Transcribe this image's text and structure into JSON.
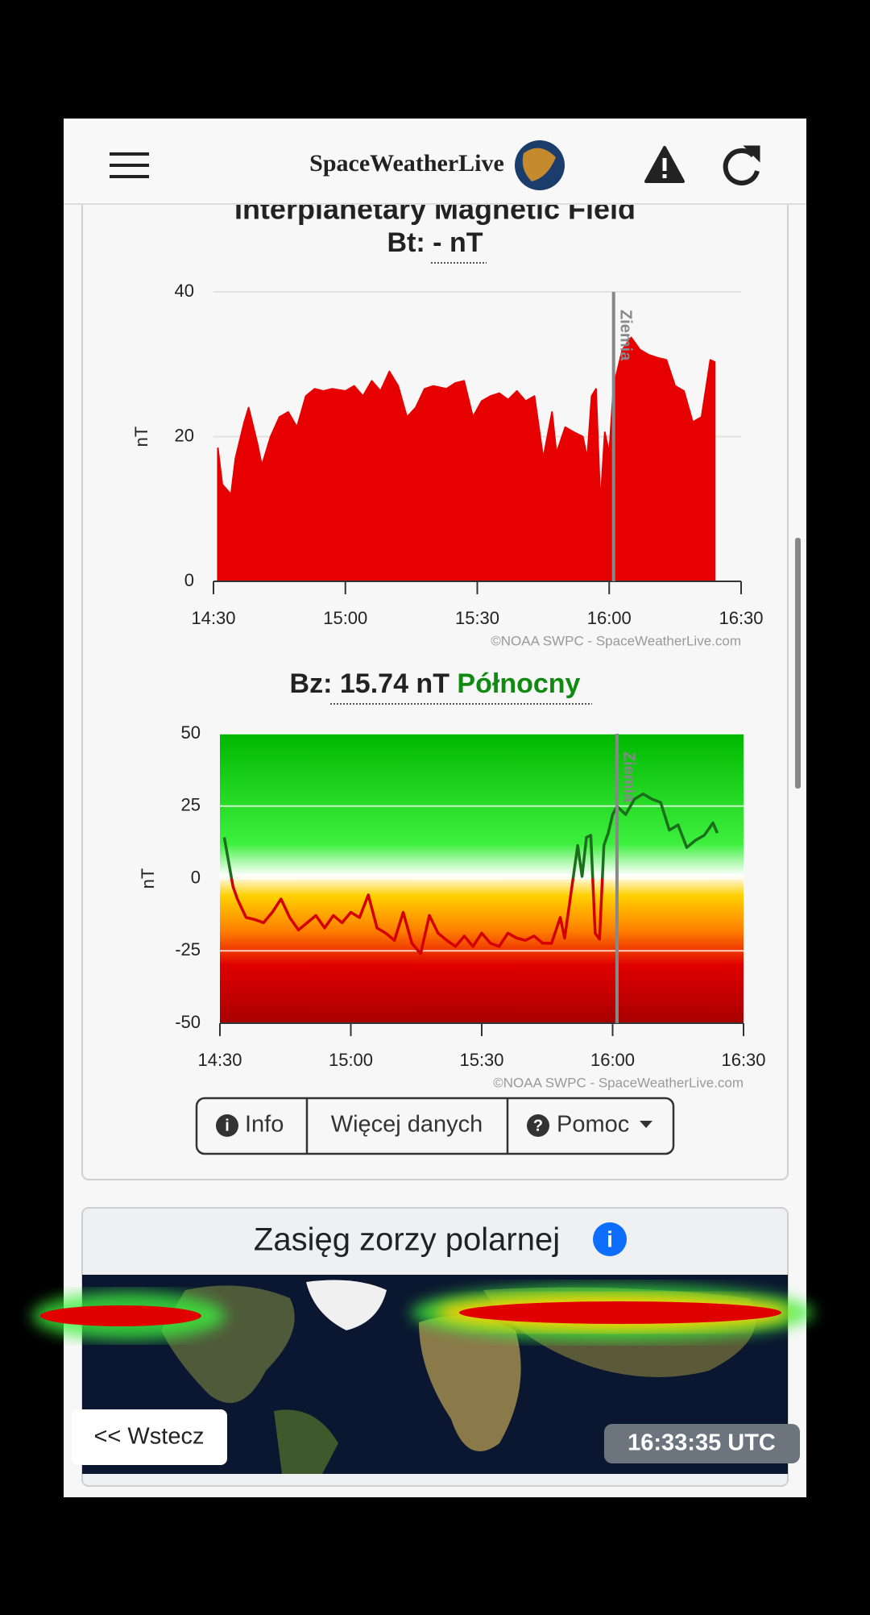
{
  "header": {
    "brand": "SpaceWeatherLive"
  },
  "chart_data": [
    {
      "type": "area",
      "title": "Interplanetary Magnetic Field",
      "subtitle_label": "Bt:",
      "subtitle_value": "- nT",
      "y_label": "nT",
      "x": [
        "14:31",
        "14:32",
        "14:33",
        "14:34",
        "14:35",
        "14:37",
        "14:38",
        "14:40",
        "14:41",
        "14:43",
        "14:45",
        "14:47",
        "14:49",
        "14:51",
        "14:53",
        "14:55",
        "14:57",
        "15:00",
        "15:02",
        "15:04",
        "15:06",
        "15:08",
        "15:10",
        "15:12",
        "15:14",
        "15:16",
        "15:18",
        "15:20",
        "15:23",
        "15:25",
        "15:27",
        "15:29",
        "15:31",
        "15:33",
        "15:35",
        "15:37",
        "15:39",
        "15:41",
        "15:43",
        "15:45",
        "15:47",
        "15:48",
        "15:50",
        "15:52",
        "15:54",
        "15:55",
        "15:56",
        "15:57",
        "15:58",
        "15:59",
        "16:00",
        "16:01",
        "16:03",
        "16:05",
        "16:07",
        "16:09",
        "16:11",
        "16:13",
        "16:15",
        "16:17",
        "16:19",
        "16:21",
        "16:23",
        "16:24"
      ],
      "values": [
        18.4,
        13.4,
        12.7,
        12,
        17,
        22,
        24,
        19,
        16,
        20,
        22.7,
        23.4,
        21.3,
        25.6,
        26.6,
        26.3,
        26.6,
        26.3,
        27,
        25.6,
        27.7,
        26.3,
        29,
        27,
        22.7,
        24,
        26.6,
        27,
        26.6,
        27.4,
        27.7,
        22.7,
        24.9,
        25.6,
        26,
        25.1,
        26.3,
        24.9,
        25.6,
        17,
        23.4,
        17.7,
        21.3,
        20.6,
        20,
        17,
        25.6,
        26.6,
        10.6,
        20.6,
        17.7,
        27,
        32,
        33.7,
        32,
        31.3,
        30.9,
        30.6,
        27,
        26.3,
        22,
        22.7,
        30.6,
        30.3
      ],
      "color": "#e60000",
      "xlim": [
        "14:30",
        "16:30"
      ],
      "xticks": [
        "14:30",
        "15:00",
        "15:30",
        "16:00",
        "16:30"
      ],
      "ylim": [
        0,
        40
      ],
      "yticks": [
        0,
        20,
        40
      ],
      "grid": true,
      "annotation": {
        "text": "Ziemia",
        "x": "16:01"
      },
      "credit": "©NOAA SWPC - SpaceWeatherLive.com"
    },
    {
      "type": "line",
      "title_label": "Bz:",
      "title_value": "15.74 nT",
      "title_direction": "Północny",
      "y_label": "nT",
      "x": [
        "14:31",
        "14:33",
        "14:34",
        "14:36",
        "14:38",
        "14:40",
        "14:42",
        "14:44",
        "14:46",
        "14:48",
        "14:50",
        "14:52",
        "14:54",
        "14:56",
        "14:58",
        "15:00",
        "15:02",
        "15:04",
        "15:06",
        "15:08",
        "15:10",
        "15:12",
        "15:14",
        "15:16",
        "15:18",
        "15:20",
        "15:22",
        "15:24",
        "15:26",
        "15:28",
        "15:30",
        "15:32",
        "15:34",
        "15:36",
        "15:38",
        "15:40",
        "15:42",
        "15:44",
        "15:46",
        "15:48",
        "15:49",
        "15:50",
        "15:52",
        "15:53",
        "15:54",
        "15:55",
        "15:56",
        "15:57",
        "15:58",
        "15:59",
        "16:00",
        "16:01",
        "16:03",
        "16:05",
        "16:07",
        "16:09",
        "16:11",
        "16:13",
        "16:15",
        "16:17",
        "16:19",
        "16:21",
        "16:23",
        "16:24"
      ],
      "values": [
        14.2,
        -2.8,
        -7.1,
        -13.5,
        -14.2,
        -15.3,
        -11.7,
        -7.1,
        -13.5,
        -17.8,
        -15.3,
        -12.8,
        -17.1,
        -12.8,
        -15.3,
        -11.7,
        -13.5,
        -5.7,
        -17.1,
        -18.9,
        -21.4,
        -11.7,
        -22.4,
        -26,
        -12.8,
        -18.9,
        -21.4,
        -23.5,
        -19.9,
        -23.5,
        -18.9,
        -22.4,
        -23.5,
        -18.9,
        -20.6,
        -21.4,
        -19.9,
        -22.4,
        -22.4,
        -13.5,
        -20.6,
        -10,
        11.4,
        0.7,
        14.2,
        14.9,
        -18.9,
        -21,
        11.4,
        15.7,
        22.1,
        24.9,
        22.1,
        27.4,
        29.2,
        27.4,
        26.3,
        16.7,
        18.5,
        10.7,
        13.2,
        14.9,
        19.2,
        15.7
      ],
      "color_positive": "#1b6e1b",
      "color_negative": "#d40000",
      "xlim": [
        "14:30",
        "16:30"
      ],
      "xticks": [
        "14:30",
        "15:00",
        "15:30",
        "16:00",
        "16:30"
      ],
      "ylim": [
        -50,
        50
      ],
      "yticks": [
        -50,
        -25,
        0,
        25,
        50
      ],
      "grid": true,
      "annotation": {
        "text": "Ziemia",
        "x": "16:01"
      },
      "credit": "©NOAA SWPC - SpaceWeatherLive.com"
    }
  ],
  "buttons": [
    "Info",
    "Więcej danych",
    "Pomoc"
  ],
  "aurora": {
    "title": "Zasięg zorzy polarnej"
  },
  "back": "<< Wstecz",
  "clock": "16:33:35 UTC"
}
